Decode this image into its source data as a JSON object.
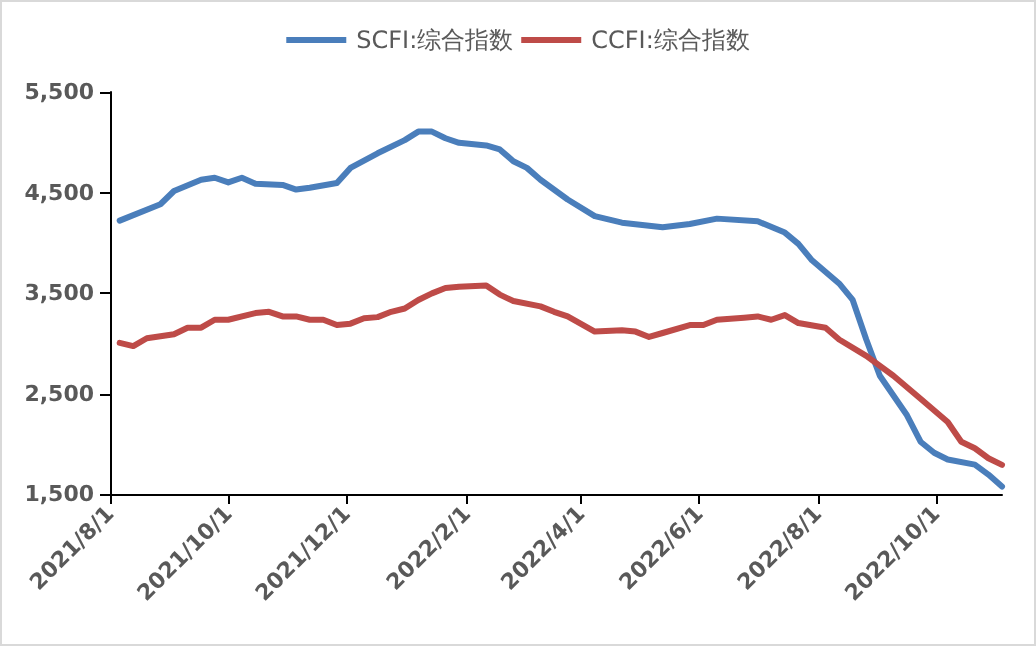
{
  "chart_data": {
    "type": "line",
    "x": [
      "2021-08-06",
      "2021-08-27",
      "2021-09-03",
      "2021-09-17",
      "2021-09-24",
      "2021-10-01",
      "2021-10-08",
      "2021-10-15",
      "2021-10-29",
      "2021-11-05",
      "2021-11-12",
      "2021-11-26",
      "2021-12-03",
      "2021-12-17",
      "2021-12-31",
      "2022-01-07",
      "2022-01-14",
      "2022-01-21",
      "2022-01-28",
      "2022-02-11",
      "2022-02-18",
      "2022-02-25",
      "2022-03-04",
      "2022-03-11",
      "2022-03-25",
      "2022-04-08",
      "2022-04-22",
      "2022-05-13",
      "2022-05-27",
      "2022-06-10",
      "2022-07-01",
      "2022-07-15",
      "2022-07-22",
      "2022-07-29",
      "2022-08-12",
      "2022-08-19",
      "2022-08-26",
      "2022-09-02",
      "2022-09-16",
      "2022-09-23",
      "2022-09-30",
      "2022-10-07",
      "2022-10-21",
      "2022-10-28",
      "2022-11-04"
    ],
    "series": [
      {
        "name": "SCFI:综合指数",
        "color": "#4a7ebb",
        "values": [
          4220,
          4383,
          4515,
          4627,
          4647,
          4600,
          4647,
          4588,
          4575,
          4529,
          4548,
          4594,
          4745,
          4890,
          5021,
          5106,
          5106,
          5040,
          4994,
          4968,
          4929,
          4811,
          4745,
          4627,
          4430,
          4265,
          4200,
          4155,
          4187,
          4240,
          4214,
          4101,
          3989,
          3825,
          3595,
          3431,
          3037,
          2677,
          2283,
          2020,
          1910,
          1843,
          1792,
          1693,
          1575
        ]
      },
      {
        "name": "CCFI:综合指数",
        "color": "#be4b48",
        "x": [
          "2021-08-06",
          "2021-08-13",
          "2021-08-20",
          "2021-09-03",
          "2021-09-10",
          "2021-09-17",
          "2021-09-24",
          "2021-10-01",
          "2021-10-15",
          "2021-10-22",
          "2021-10-29",
          "2021-11-05",
          "2021-11-12",
          "2021-11-19",
          "2021-11-26",
          "2021-12-03",
          "2021-12-10",
          "2021-12-17",
          "2021-12-24",
          "2021-12-31",
          "2022-01-07",
          "2022-01-14",
          "2022-01-21",
          "2022-01-28",
          "2022-02-11",
          "2022-02-18",
          "2022-02-25",
          "2022-03-11",
          "2022-03-18",
          "2022-03-25",
          "2022-04-08",
          "2022-04-22",
          "2022-04-29",
          "2022-05-06",
          "2022-05-13",
          "2022-05-27",
          "2022-06-03",
          "2022-06-10",
          "2022-06-24",
          "2022-07-01",
          "2022-07-08",
          "2022-07-15",
          "2022-07-22",
          "2022-08-05",
          "2022-08-12",
          "2022-08-26",
          "2022-09-09",
          "2022-09-23",
          "2022-10-07",
          "2022-10-14",
          "2022-10-21",
          "2022-10-28",
          "2022-11-04"
        ],
        "values": [
          3004,
          2972,
          3050,
          3090,
          3155,
          3155,
          3234,
          3234,
          3300,
          3313,
          3267,
          3267,
          3234,
          3234,
          3181,
          3195,
          3248,
          3260,
          3313,
          3346,
          3431,
          3496,
          3549,
          3563,
          3575,
          3484,
          3420,
          3367,
          3313,
          3267,
          3116,
          3130,
          3116,
          3063,
          3102,
          3181,
          3181,
          3234,
          3254,
          3267,
          3234,
          3280,
          3201,
          3155,
          3037,
          2874,
          2677,
          2447,
          2217,
          2020,
          1955,
          1856,
          1790
        ]
      }
    ],
    "xlim": [
      "2021-08-01",
      "2022-11-04"
    ],
    "xticks": [
      {
        "value": "2021-08-01",
        "label": "2021/8/1"
      },
      {
        "value": "2021-10-01",
        "label": "2021/10/1"
      },
      {
        "value": "2021-12-01",
        "label": "2021/12/1"
      },
      {
        "value": "2022-02-01",
        "label": "2022/2/1"
      },
      {
        "value": "2022-04-01",
        "label": "2022/4/1"
      },
      {
        "value": "2022-06-01",
        "label": "2022/6/1"
      },
      {
        "value": "2022-08-01",
        "label": "2022/8/1"
      },
      {
        "value": "2022-10-01",
        "label": "2022/10/1"
      }
    ],
    "ylim": [
      1500,
      5500
    ],
    "yticks": [
      {
        "value": 1500,
        "label": "1,500"
      },
      {
        "value": 2500,
        "label": "2,500"
      },
      {
        "value": 3500,
        "label": "3,500"
      },
      {
        "value": 4500,
        "label": "4,500"
      },
      {
        "value": 5500,
        "label": "5,500"
      }
    ],
    "grid": false,
    "legend": "top",
    "marker": "none",
    "line_style": "solid"
  }
}
